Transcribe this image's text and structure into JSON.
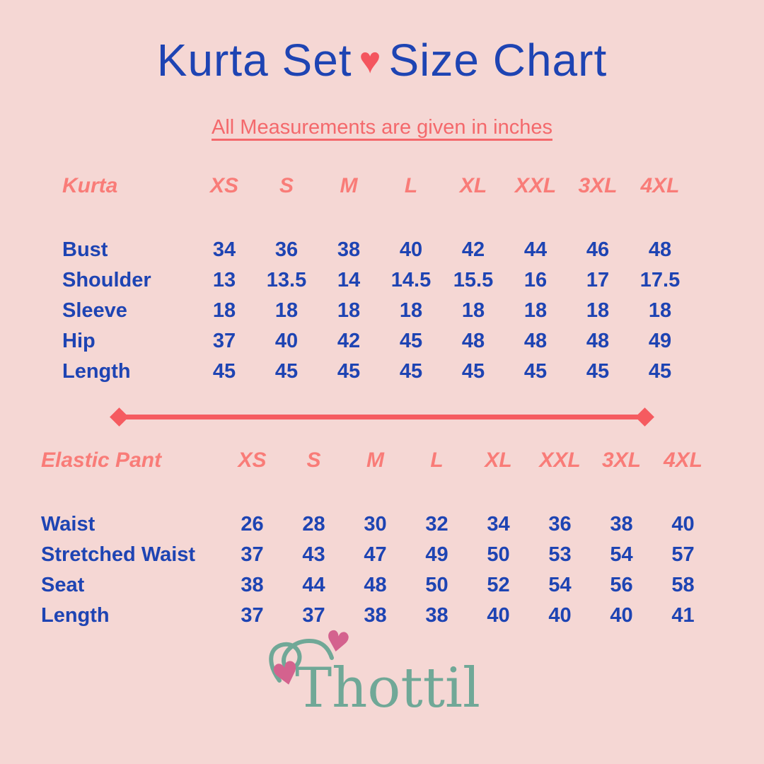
{
  "title": {
    "part1": "Kurta Set",
    "part2": "Size Chart",
    "heart_icon": "♥"
  },
  "subtitle": "All Measurements are given in inches",
  "chart_data": [
    {
      "type": "table",
      "name": "Kurta",
      "columns": [
        "XS",
        "S",
        "M",
        "L",
        "XL",
        "XXL",
        "3XL",
        "4XL"
      ],
      "rows": [
        {
          "label": "Bust",
          "values": [
            34,
            36,
            38,
            40,
            42,
            44,
            46,
            48
          ]
        },
        {
          "label": "Shoulder",
          "values": [
            13,
            13.5,
            14,
            14.5,
            15.5,
            16,
            17,
            17.5
          ]
        },
        {
          "label": "Sleeve",
          "values": [
            18,
            18,
            18,
            18,
            18,
            18,
            18,
            18
          ]
        },
        {
          "label": "Hip",
          "values": [
            37,
            40,
            42,
            45,
            48,
            48,
            48,
            49
          ]
        },
        {
          "label": "Length",
          "values": [
            45,
            45,
            45,
            45,
            45,
            45,
            45,
            45
          ]
        }
      ]
    },
    {
      "type": "table",
      "name": "Elastic Pant",
      "columns": [
        "XS",
        "S",
        "M",
        "L",
        "XL",
        "XXL",
        "3XL",
        "4XL"
      ],
      "rows": [
        {
          "label": "Waist",
          "values": [
            26,
            28,
            30,
            32,
            34,
            36,
            38,
            40
          ]
        },
        {
          "label": "Stretched Waist",
          "values": [
            37,
            43,
            47,
            49,
            50,
            53,
            54,
            57
          ]
        },
        {
          "label": "Seat",
          "values": [
            38,
            44,
            48,
            50,
            52,
            54,
            56,
            58
          ]
        },
        {
          "label": "Length",
          "values": [
            37,
            37,
            38,
            38,
            40,
            40,
            40,
            41
          ]
        }
      ]
    }
  ],
  "brand": {
    "name": "Thottil",
    "heart_icon": "♥"
  },
  "colors": {
    "background": "#f5d7d4",
    "primary_text": "#1e44b3",
    "accent_coral": "#f4696c",
    "table_header_coral": "#f97c78",
    "divider_red": "#f55b60",
    "brand_teal": "#70a897",
    "brand_heart_pink": "#d4628e"
  }
}
